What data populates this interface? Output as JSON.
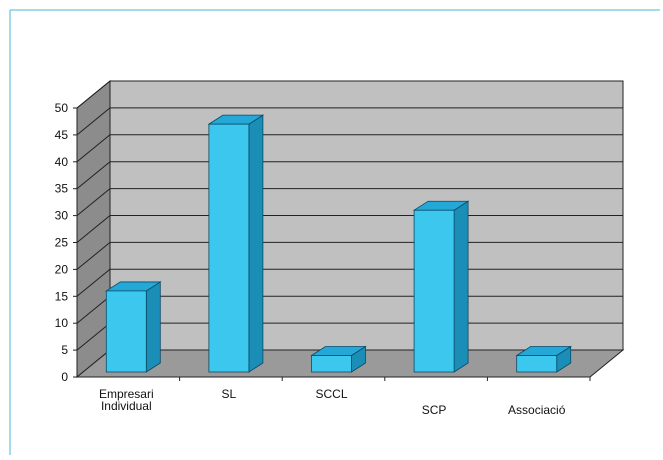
{
  "colors": {
    "frame": "#4ab4dc",
    "wall": "#c0c0c0",
    "wall_side": "#8c8c8c",
    "floor": "#9a9a9a",
    "grid": "#222222",
    "bar_front": "#3cc8ee",
    "bar_top": "#24a8d8",
    "bar_side": "#1a8eb6",
    "bar_edge": "#0a4a66",
    "text": "#111111"
  },
  "chart_data": {
    "type": "bar",
    "title": "",
    "xlabel": "",
    "ylabel": "",
    "categories": [
      [
        "Empresari",
        "Individual"
      ],
      [
        "SL"
      ],
      [
        "SCCL"
      ],
      [
        "SCP"
      ],
      [
        "Associació"
      ]
    ],
    "values": [
      16,
      47,
      4,
      31,
      4
    ],
    "ylim": [
      0,
      50
    ],
    "yticks": [
      0,
      5,
      10,
      15,
      20,
      25,
      30,
      35,
      40,
      45,
      50
    ],
    "grid": true,
    "style": "3d-column",
    "legend": "none"
  }
}
